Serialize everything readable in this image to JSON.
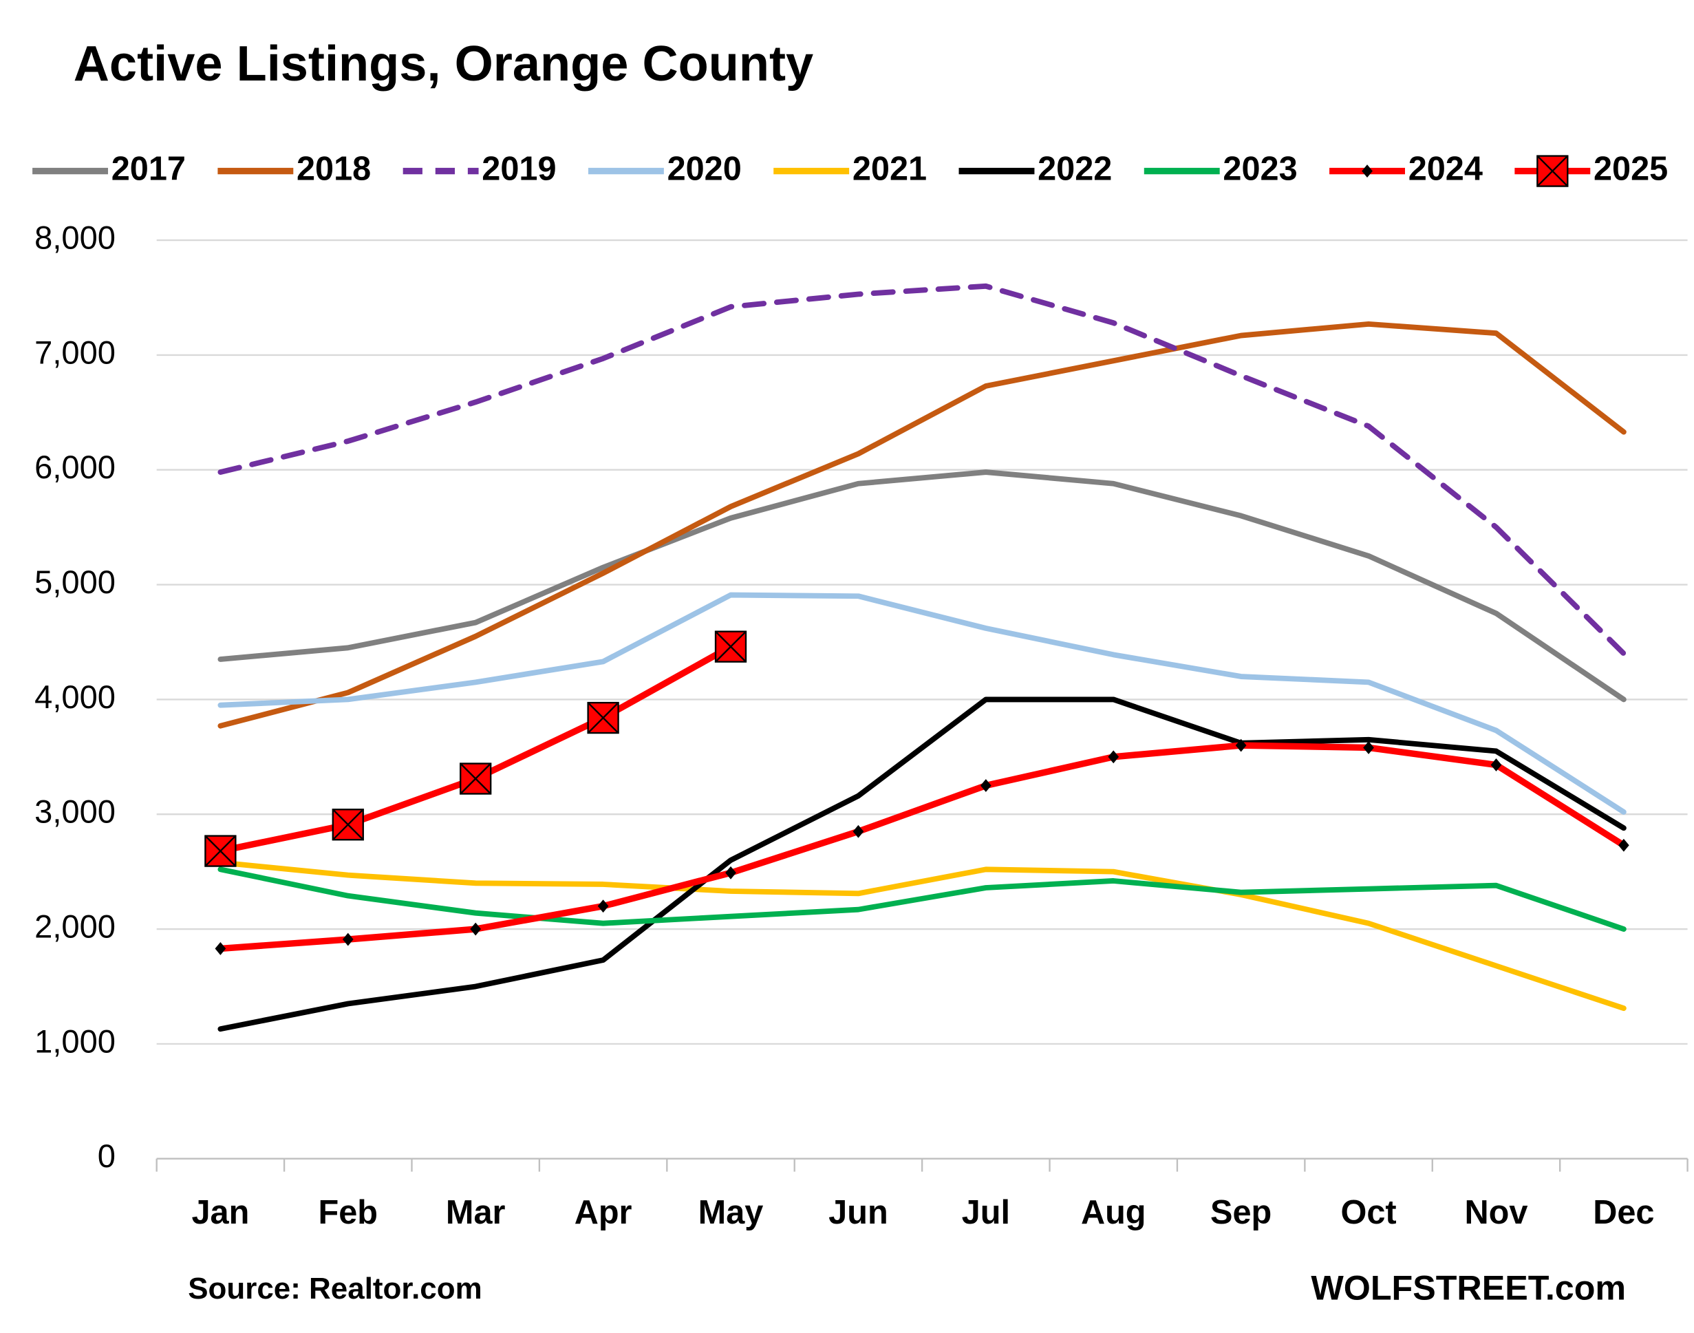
{
  "chart_data": {
    "type": "line",
    "title": "Active Listings, Orange County",
    "source": "Source: Realtor.com",
    "credit": "WOLFSTREET.com",
    "categories": [
      "Jan",
      "Feb",
      "Mar",
      "Apr",
      "May",
      "Jun",
      "Jul",
      "Aug",
      "Sep",
      "Oct",
      "Nov",
      "Dec"
    ],
    "ylim": [
      0,
      8000
    ],
    "yticks": [
      0,
      {
        "value": 1000,
        "label": "1,000"
      },
      {
        "value": 2000,
        "label": "2,000"
      },
      {
        "value": 3000,
        "label": "3,000"
      },
      {
        "value": 4000,
        "label": "4,000"
      },
      {
        "value": 5000,
        "label": "5,000"
      },
      {
        "value": 6000,
        "label": "6,000"
      },
      {
        "value": 7000,
        "label": "7,000"
      },
      {
        "value": 8000,
        "label": "8,000"
      }
    ],
    "grid": true,
    "legend": "top",
    "series": [
      {
        "name": "2017",
        "color": "#808080",
        "values": [
          4350,
          4450,
          4670,
          5150,
          5580,
          5880,
          5980,
          5880,
          5600,
          5250,
          4750,
          4000
        ]
      },
      {
        "name": "2018",
        "color": "#c55a11",
        "values": [
          3770,
          4060,
          4550,
          5100,
          5680,
          6140,
          6730,
          6950,
          7170,
          7270,
          7190,
          6330
        ]
      },
      {
        "name": "2019",
        "color": "#7030a0",
        "dash": true,
        "values": [
          5980,
          6250,
          6590,
          6970,
          7420,
          7530,
          7600,
          7280,
          6820,
          6380,
          5500,
          4400
        ]
      },
      {
        "name": "2020",
        "color": "#9dc3e6",
        "values": [
          3950,
          4000,
          4150,
          4330,
          4910,
          4900,
          4620,
          4390,
          4200,
          4150,
          3730,
          3020
        ]
      },
      {
        "name": "2021",
        "color": "#ffc000",
        "values": [
          2580,
          2470,
          2400,
          2390,
          2330,
          2310,
          2520,
          2500,
          2300,
          2050,
          1680,
          1310
        ]
      },
      {
        "name": "2022",
        "color": "#000000",
        "values": [
          1130,
          1350,
          1500,
          1730,
          2600,
          3160,
          4000,
          4000,
          3620,
          3650,
          3550,
          2880
        ]
      },
      {
        "name": "2023",
        "color": "#00b050",
        "values": [
          2520,
          2290,
          2140,
          2050,
          2110,
          2170,
          2360,
          2420,
          2320,
          2350,
          2380,
          2000
        ]
      },
      {
        "name": "2024",
        "color": "#ff0000",
        "marker": "diamond",
        "values": [
          1830,
          1910,
          2000,
          2200,
          2490,
          2850,
          3250,
          3500,
          3600,
          3580,
          3430,
          2730
        ]
      },
      {
        "name": "2025",
        "color": "#ff0000",
        "marker": "square-x",
        "values": [
          2680,
          2910,
          3310,
          3840,
          4460,
          null,
          null,
          null,
          null,
          null,
          null,
          null
        ]
      }
    ]
  }
}
